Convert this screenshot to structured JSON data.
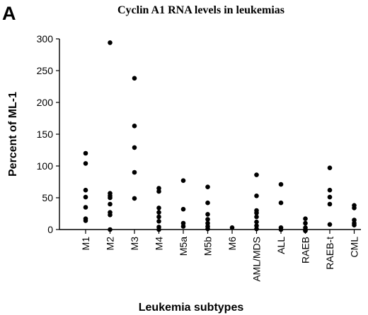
{
  "figure": {
    "panel_label": "A"
  },
  "chart_data": {
    "type": "scatter",
    "title": "Cyclin A1 RNA levels in leukemias",
    "xlabel": "Leukemia subtypes",
    "ylabel": "Percent of ML-1",
    "ylim": [
      0,
      300
    ],
    "yticks": [
      0,
      50,
      100,
      150,
      200,
      250,
      300
    ],
    "grid": false,
    "categories": [
      "M1",
      "M2",
      "M3",
      "M4",
      "M5a",
      "M5b",
      "M6",
      "AML/MDS",
      "ALL",
      "RAEB",
      "RAEB-t",
      "CML"
    ],
    "points": [
      [
        120,
        104,
        62,
        51,
        35,
        17,
        14
      ],
      [
        294,
        57,
        53,
        50,
        40,
        27,
        23,
        0
      ],
      [
        238,
        163,
        129,
        90,
        49
      ],
      [
        65,
        60,
        34,
        27,
        20,
        13,
        4,
        0
      ],
      [
        77,
        32,
        10,
        5
      ],
      [
        67,
        42,
        24,
        16,
        10,
        5,
        1
      ],
      [
        3
      ],
      [
        86,
        53,
        30,
        26,
        20,
        12,
        6,
        1
      ],
      [
        71,
        42,
        3,
        0
      ],
      [
        17,
        10,
        3,
        0,
        -2,
        -1
      ],
      [
        97,
        62,
        51,
        40,
        8
      ],
      [
        38,
        34,
        15,
        10,
        7
      ]
    ]
  }
}
